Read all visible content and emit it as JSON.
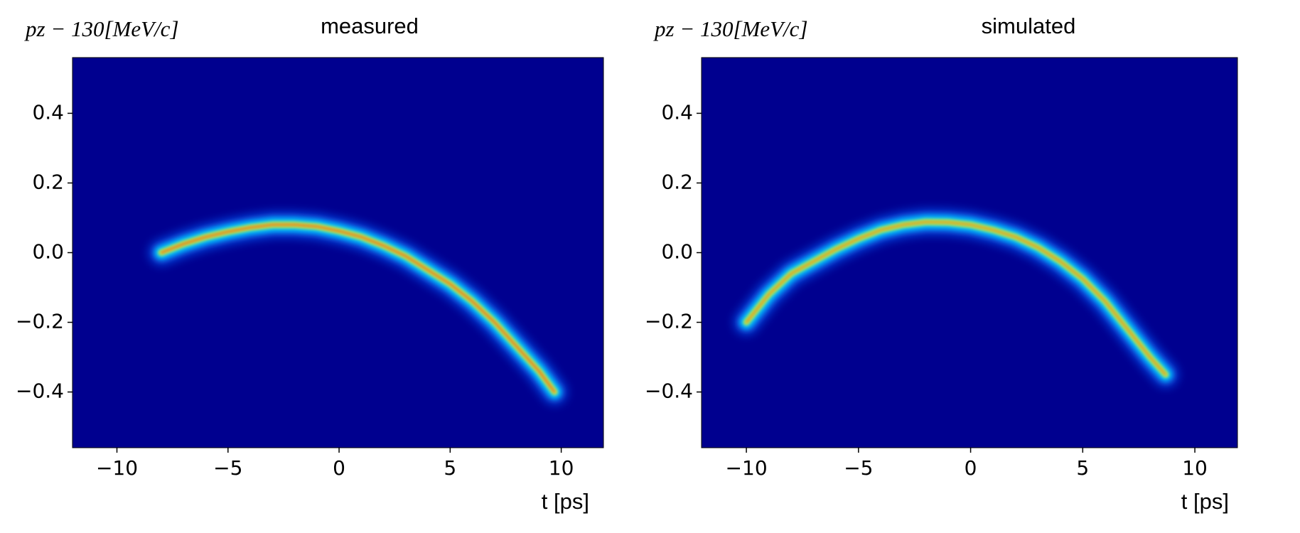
{
  "chart_data": [
    {
      "type": "density",
      "title": "measured",
      "ylabel": "pz − 130[MeV/c]",
      "xlabel": "t [ps]",
      "background": "#00008f",
      "colors": [
        "#1060ff",
        "#00e0ff",
        "#f0ff20",
        "#ff2000"
      ],
      "x": [
        -8,
        -7,
        -6,
        -5,
        -4,
        -3,
        -2,
        -1,
        0,
        1,
        2,
        3,
        4,
        5,
        6,
        7,
        8,
        9,
        9.7
      ],
      "values": [
        0.0,
        0.025,
        0.045,
        0.06,
        0.072,
        0.08,
        0.08,
        0.075,
        0.062,
        0.045,
        0.02,
        -0.01,
        -0.05,
        -0.09,
        -0.14,
        -0.2,
        -0.27,
        -0.34,
        -0.4
      ],
      "xlim": [
        -12,
        11.9
      ],
      "ylim": [
        -0.56,
        0.56
      ],
      "xticks": [
        {
          "value": -10,
          "label": "−10"
        },
        {
          "value": -5,
          "label": "−5"
        },
        0,
        5,
        10
      ],
      "yticks": [
        {
          "value": -0.4,
          "label": "−0.4"
        },
        {
          "value": -0.2,
          "label": "−0.2"
        },
        {
          "value": 0,
          "label": "0.0"
        },
        0.2,
        0.4
      ]
    },
    {
      "type": "density",
      "title": "simulated",
      "ylabel": "pz − 130[MeV/c]",
      "xlabel": "t [ps]",
      "background": "#00008f",
      "colors": [
        "#1060ff",
        "#00d8ff",
        "#d8ff30",
        "#ff6000"
      ],
      "x": [
        -10,
        -9,
        -8,
        -7,
        -6,
        -5,
        -4,
        -3,
        -2,
        -1,
        0,
        1,
        2,
        3,
        4,
        5,
        6,
        7,
        8,
        8.7
      ],
      "values": [
        -0.2,
        -0.12,
        -0.06,
        -0.025,
        0.01,
        0.04,
        0.065,
        0.08,
        0.088,
        0.087,
        0.08,
        0.065,
        0.045,
        0.015,
        -0.025,
        -0.075,
        -0.14,
        -0.22,
        -0.3,
        -0.35
      ],
      "xlim": [
        -12,
        11.9
      ],
      "ylim": [
        -0.56,
        0.56
      ],
      "xticks": [
        {
          "value": -10,
          "label": "−10"
        },
        {
          "value": -5,
          "label": "−5"
        },
        0,
        5,
        10
      ],
      "yticks": [
        {
          "value": -0.4,
          "label": "−0.4"
        },
        {
          "value": -0.2,
          "label": "−0.2"
        },
        {
          "value": 0,
          "label": "0.0"
        },
        0.2,
        0.4
      ]
    }
  ]
}
